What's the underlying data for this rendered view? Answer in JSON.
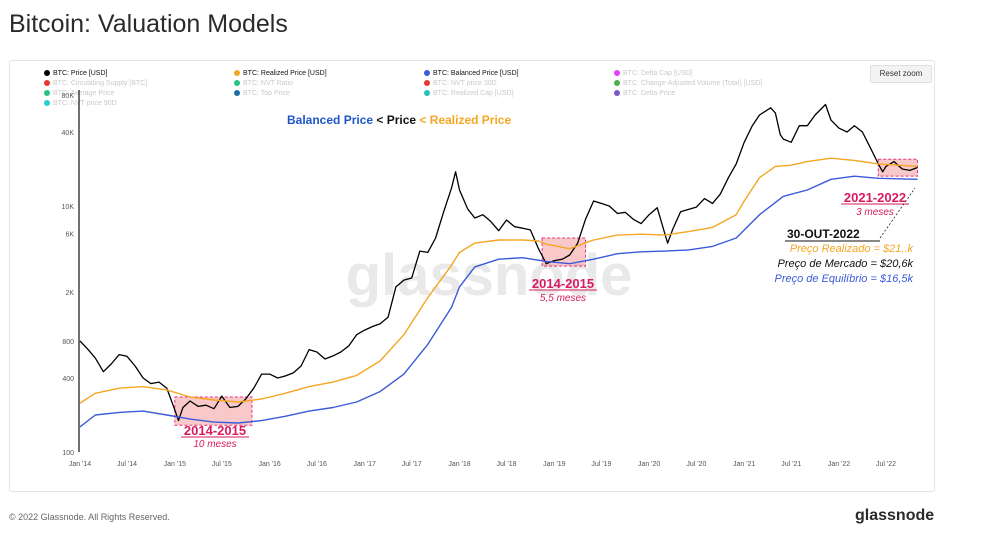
{
  "page": {
    "title": "Bitcoin: Valuation Models",
    "footer": "© 2022 Glassnode. All Rights Reserved.",
    "brand": "glassnode",
    "reset_label": "Reset zoom",
    "watermark": "glassnode"
  },
  "legend": [
    {
      "label": "BTC: Price [USD]",
      "color": "#000000",
      "active": true
    },
    {
      "label": "BTC: Realized Price [USD]",
      "color": "#f5a623",
      "active": true
    },
    {
      "label": "BTC: Balanced Price [USD]",
      "color": "#3a5bd9",
      "active": true
    },
    {
      "label": "BTC: Delta Cap [USD]",
      "color": "#e040fb",
      "active": false
    },
    {
      "label": "BTC: Circulating Supply [BTC]",
      "color": "#e53935",
      "active": false
    },
    {
      "label": "BTC: NVT Ratio",
      "color": "#26c281",
      "active": false
    },
    {
      "label": "BTC: NVT price 30D",
      "color": "#e53935",
      "active": false
    },
    {
      "label": "BTC: Change-Adjusted Volume (Total) [USD]",
      "color": "#4caf50",
      "active": false
    },
    {
      "label": "BTC: Average Price",
      "color": "#26c281",
      "active": false
    },
    {
      "label": "BTC: Top Price",
      "color": "#1e6fa8",
      "active": false
    },
    {
      "label": "BTC: Realized Cap [USD]",
      "color": "#26c2c2",
      "active": false
    },
    {
      "label": "BTC: Delta Price",
      "color": "#7e57c2",
      "active": false
    },
    {
      "label": "BTC: NVT price 90D",
      "color": "#26d0ce",
      "active": false
    }
  ],
  "chart_data": {
    "type": "line",
    "title": "",
    "xlabel": "",
    "ylabel": "",
    "y_scale": "log",
    "ylim": [
      100,
      80000
    ],
    "y_ticks": [
      100,
      400,
      800,
      2000,
      6000,
      10000,
      40000,
      80000
    ],
    "y_tick_labels": [
      "100",
      "400",
      "800",
      "2K",
      "6K",
      "10K",
      "40K",
      "80K"
    ],
    "x_ticks": [
      "2014-01-01",
      "2014-07-01",
      "2015-01-01",
      "2015-07-01",
      "2016-01-01",
      "2016-07-01",
      "2017-01-01",
      "2017-07-01",
      "2018-01-01",
      "2018-07-01",
      "2019-01-01",
      "2019-07-01",
      "2020-01-01",
      "2020-07-01",
      "2021-01-01",
      "2021-07-01",
      "2022-01-01",
      "2022-07-01"
    ],
    "x_tick_labels": [
      "Jan '14",
      "Jul '14",
      "Jan '15",
      "Jul '15",
      "Jan '16",
      "Jul '16",
      "Jan '17",
      "Jul '17",
      "Jan '18",
      "Jul '18",
      "Jan '19",
      "Jul '19",
      "Jan '20",
      "Jul '20",
      "Jan '21",
      "Jul '21",
      "Jan '22",
      "Jul '22"
    ],
    "xlim": [
      "2014-01-01",
      "2022-11-01"
    ],
    "grid": false,
    "legend_position": "top",
    "series": [
      {
        "name": "BTC: Price [USD]",
        "color": "#000000",
        "points": [
          [
            "2014-01-01",
            800
          ],
          [
            "2014-02-01",
            680
          ],
          [
            "2014-03-01",
            580
          ],
          [
            "2014-04-01",
            450
          ],
          [
            "2014-05-01",
            520
          ],
          [
            "2014-06-01",
            620
          ],
          [
            "2014-07-01",
            600
          ],
          [
            "2014-08-01",
            500
          ],
          [
            "2014-09-01",
            400
          ],
          [
            "2014-10-01",
            360
          ],
          [
            "2014-11-01",
            370
          ],
          [
            "2014-12-01",
            330
          ],
          [
            "2015-01-01",
            220
          ],
          [
            "2015-01-15",
            180
          ],
          [
            "2015-02-01",
            230
          ],
          [
            "2015-03-01",
            260
          ],
          [
            "2015-04-01",
            235
          ],
          [
            "2015-05-01",
            240
          ],
          [
            "2015-06-01",
            225
          ],
          [
            "2015-07-01",
            285
          ],
          [
            "2015-08-01",
            230
          ],
          [
            "2015-09-01",
            235
          ],
          [
            "2015-10-01",
            270
          ],
          [
            "2015-11-01",
            330
          ],
          [
            "2015-12-01",
            430
          ],
          [
            "2016-01-01",
            430
          ],
          [
            "2016-02-01",
            400
          ],
          [
            "2016-03-01",
            415
          ],
          [
            "2016-04-01",
            440
          ],
          [
            "2016-05-01",
            500
          ],
          [
            "2016-06-01",
            680
          ],
          [
            "2016-07-01",
            650
          ],
          [
            "2016-08-01",
            570
          ],
          [
            "2016-09-01",
            605
          ],
          [
            "2016-10-01",
            650
          ],
          [
            "2016-11-01",
            730
          ],
          [
            "2016-12-01",
            900
          ],
          [
            "2017-01-01",
            980
          ],
          [
            "2017-02-01",
            1050
          ],
          [
            "2017-03-01",
            1100
          ],
          [
            "2017-04-01",
            1250
          ],
          [
            "2017-05-01",
            2200
          ],
          [
            "2017-06-01",
            2500
          ],
          [
            "2017-07-01",
            2600
          ],
          [
            "2017-08-01",
            4300
          ],
          [
            "2017-09-01",
            4200
          ],
          [
            "2017-10-01",
            5500
          ],
          [
            "2017-11-01",
            9000
          ],
          [
            "2017-12-01",
            14000
          ],
          [
            "2017-12-17",
            19000
          ],
          [
            "2018-01-01",
            13500
          ],
          [
            "2018-02-01",
            9500
          ],
          [
            "2018-03-01",
            8000
          ],
          [
            "2018-04-01",
            8500
          ],
          [
            "2018-05-01",
            7500
          ],
          [
            "2018-06-01",
            6300
          ],
          [
            "2018-07-01",
            7700
          ],
          [
            "2018-08-01",
            6800
          ],
          [
            "2018-09-01",
            6600
          ],
          [
            "2018-10-01",
            6400
          ],
          [
            "2018-11-01",
            4500
          ],
          [
            "2018-12-01",
            3400
          ],
          [
            "2019-01-01",
            3600
          ],
          [
            "2019-02-01",
            3700
          ],
          [
            "2019-03-01",
            4000
          ],
          [
            "2019-04-01",
            5000
          ],
          [
            "2019-05-01",
            7800
          ],
          [
            "2019-06-01",
            11000
          ],
          [
            "2019-07-01",
            10500
          ],
          [
            "2019-08-01",
            10000
          ],
          [
            "2019-09-01",
            8700
          ],
          [
            "2019-10-01",
            8900
          ],
          [
            "2019-11-01",
            7800
          ],
          [
            "2019-12-01",
            7200
          ],
          [
            "2020-01-01",
            8500
          ],
          [
            "2020-02-01",
            9700
          ],
          [
            "2020-03-12",
            5000
          ],
          [
            "2020-04-01",
            6500
          ],
          [
            "2020-05-01",
            9000
          ],
          [
            "2020-06-01",
            9400
          ],
          [
            "2020-07-01",
            9800
          ],
          [
            "2020-08-01",
            11500
          ],
          [
            "2020-09-01",
            10500
          ],
          [
            "2020-10-01",
            12500
          ],
          [
            "2020-11-01",
            17000
          ],
          [
            "2020-12-01",
            22000
          ],
          [
            "2021-01-01",
            33000
          ],
          [
            "2021-02-01",
            45000
          ],
          [
            "2021-03-01",
            55000
          ],
          [
            "2021-04-13",
            63000
          ],
          [
            "2021-05-01",
            57000
          ],
          [
            "2021-05-20",
            38000
          ],
          [
            "2021-06-01",
            35000
          ],
          [
            "2021-07-01",
            33000
          ],
          [
            "2021-08-01",
            45000
          ],
          [
            "2021-09-01",
            45000
          ],
          [
            "2021-10-01",
            55000
          ],
          [
            "2021-11-10",
            67000
          ],
          [
            "2021-12-01",
            50000
          ],
          [
            "2022-01-01",
            43000
          ],
          [
            "2022-02-01",
            40000
          ],
          [
            "2022-03-01",
            45000
          ],
          [
            "2022-04-01",
            40000
          ],
          [
            "2022-05-01",
            30000
          ],
          [
            "2022-06-01",
            22000
          ],
          [
            "2022-06-18",
            19000
          ],
          [
            "2022-07-01",
            21000
          ],
          [
            "2022-08-01",
            23000
          ],
          [
            "2022-09-01",
            20000
          ],
          [
            "2022-10-01",
            19500
          ],
          [
            "2022-10-30",
            20600
          ]
        ]
      },
      {
        "name": "BTC: Realized Price [USD]",
        "color": "#f5a623",
        "points": [
          [
            "2014-01-01",
            250
          ],
          [
            "2014-03-01",
            300
          ],
          [
            "2014-06-01",
            330
          ],
          [
            "2014-09-01",
            340
          ],
          [
            "2014-12-01",
            320
          ],
          [
            "2015-03-01",
            280
          ],
          [
            "2015-06-01",
            265
          ],
          [
            "2015-09-01",
            255
          ],
          [
            "2015-12-01",
            270
          ],
          [
            "2016-03-01",
            300
          ],
          [
            "2016-06-01",
            340
          ],
          [
            "2016-09-01",
            370
          ],
          [
            "2016-12-01",
            420
          ],
          [
            "2017-03-01",
            550
          ],
          [
            "2017-06-01",
            900
          ],
          [
            "2017-09-01",
            1800
          ],
          [
            "2017-12-01",
            3300
          ],
          [
            "2018-01-01",
            4200
          ],
          [
            "2018-03-01",
            5000
          ],
          [
            "2018-06-01",
            5300
          ],
          [
            "2018-09-01",
            5300
          ],
          [
            "2018-11-01",
            5200
          ],
          [
            "2018-12-01",
            4900
          ],
          [
            "2019-03-01",
            4500
          ],
          [
            "2019-06-01",
            5300
          ],
          [
            "2019-09-01",
            5800
          ],
          [
            "2019-12-01",
            5900
          ],
          [
            "2020-03-01",
            5800
          ],
          [
            "2020-06-01",
            6200
          ],
          [
            "2020-09-01",
            6700
          ],
          [
            "2020-12-01",
            8500
          ],
          [
            "2021-01-01",
            11000
          ],
          [
            "2021-03-01",
            17000
          ],
          [
            "2021-05-01",
            21000
          ],
          [
            "2021-07-01",
            21500
          ],
          [
            "2021-09-01",
            23000
          ],
          [
            "2021-12-01",
            24500
          ],
          [
            "2022-03-01",
            23500
          ],
          [
            "2022-06-01",
            22000
          ],
          [
            "2022-10-30",
            21000
          ]
        ]
      },
      {
        "name": "BTC: Balanced Price [USD]",
        "color": "#3a5bd9",
        "points": [
          [
            "2014-01-01",
            160
          ],
          [
            "2014-03-01",
            200
          ],
          [
            "2014-06-01",
            210
          ],
          [
            "2014-09-01",
            215
          ],
          [
            "2014-12-01",
            200
          ],
          [
            "2015-03-01",
            185
          ],
          [
            "2015-06-01",
            175
          ],
          [
            "2015-09-01",
            172
          ],
          [
            "2015-12-01",
            180
          ],
          [
            "2016-03-01",
            195
          ],
          [
            "2016-06-01",
            215
          ],
          [
            "2016-09-01",
            230
          ],
          [
            "2016-12-01",
            255
          ],
          [
            "2017-03-01",
            310
          ],
          [
            "2017-06-01",
            430
          ],
          [
            "2017-09-01",
            750
          ],
          [
            "2017-12-01",
            1500
          ],
          [
            "2018-01-01",
            2200
          ],
          [
            "2018-03-01",
            3200
          ],
          [
            "2018-06-01",
            3700
          ],
          [
            "2018-09-01",
            3800
          ],
          [
            "2018-12-01",
            3550
          ],
          [
            "2019-03-01",
            3400
          ],
          [
            "2019-06-01",
            3700
          ],
          [
            "2019-09-01",
            4100
          ],
          [
            "2019-12-01",
            4250
          ],
          [
            "2020-03-01",
            4300
          ],
          [
            "2020-06-01",
            4400
          ],
          [
            "2020-09-01",
            4700
          ],
          [
            "2020-12-01",
            5500
          ],
          [
            "2021-03-01",
            8500
          ],
          [
            "2021-06-01",
            12000
          ],
          [
            "2021-09-01",
            13500
          ],
          [
            "2021-12-01",
            16500
          ],
          [
            "2022-03-01",
            17500
          ],
          [
            "2022-06-01",
            16800
          ],
          [
            "2022-10-30",
            16500
          ]
        ]
      }
    ],
    "annotations": {
      "headline": {
        "parts": [
          {
            "text": "Balanced Price",
            "color": "#1e55c9"
          },
          {
            "text": " < ",
            "color": "#222222"
          },
          {
            "text": "Price",
            "color": "#111111"
          },
          {
            "text": " < ",
            "color": "#f5a623"
          },
          {
            "text": "Realized Price",
            "color": "#f5a623"
          }
        ]
      },
      "regions": [
        {
          "start": "2015-01-01",
          "end": "2015-10-25",
          "top": 280,
          "bottom": 165,
          "title": "2014-2015",
          "subtitle": "10 meses"
        },
        {
          "start": "2018-11-15",
          "end": "2019-05-01",
          "top": 5500,
          "bottom": 3250,
          "title": "2014-2015",
          "subtitle": "5,5 meses"
        },
        {
          "start": "2022-06-01",
          "end": "2022-10-30",
          "top": 24000,
          "bottom": 17500,
          "title": "2021-2022",
          "subtitle": "3 meses"
        }
      ],
      "note": {
        "date": "30-OUT-2022",
        "lines": [
          {
            "text": "Preço Realizado = $21..k",
            "color": "#f5a623"
          },
          {
            "text": "Preço de Mercado = $20,6k",
            "color": "#111111"
          },
          {
            "text": "Preço de Equilíbrio = $16,5k",
            "color": "#3a5bd9"
          }
        ]
      }
    }
  }
}
